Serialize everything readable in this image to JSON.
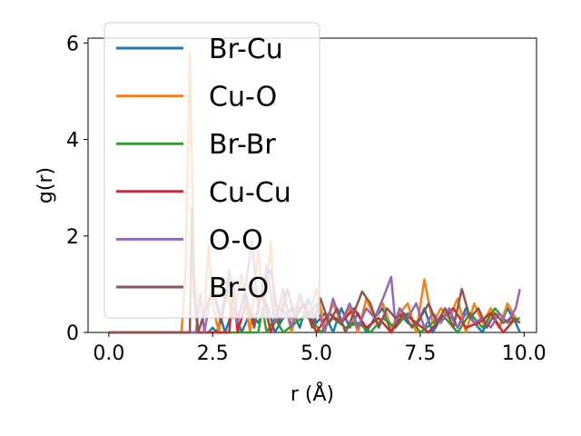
{
  "chart_data": {
    "type": "line",
    "title": "",
    "xlabel": "r (Å)",
    "ylabel": "g(r)",
    "xlim": [
      -0.5,
      10.3
    ],
    "ylim": [
      0,
      6.1
    ],
    "xticks": [
      0.0,
      2.5,
      5.0,
      7.5,
      10.0
    ],
    "xtick_labels": [
      "0.0",
      "2.5",
      "5.0",
      "7.5",
      "10.0"
    ],
    "yticks": [
      0,
      2,
      4,
      6
    ],
    "ytick_labels": [
      "0",
      "2",
      "4",
      "6"
    ],
    "grid": false,
    "legend_position": "upper-left",
    "series": [
      {
        "name": "Br-Cu",
        "color": "#1f77b4",
        "x": [
          0,
          2.4,
          2.5,
          2.6,
          2.7,
          2.8,
          3.0,
          3.2,
          3.4,
          3.6,
          3.8,
          4.0,
          4.2,
          4.4,
          4.6,
          4.8,
          5.0,
          5.2,
          5.4,
          5.6,
          5.8,
          6.0,
          6.2,
          6.4,
          6.6,
          6.8,
          7.0,
          7.2,
          7.4,
          7.6,
          7.8,
          8.0,
          8.2,
          8.4,
          8.6,
          8.8,
          9.0,
          9.2,
          9.4,
          9.6,
          9.8,
          9.9
        ],
        "y": [
          0,
          0,
          0.1,
          0,
          0.3,
          0,
          0.5,
          0,
          0.4,
          0.2,
          0.6,
          0,
          0.3,
          0.5,
          0.1,
          0.7,
          0.2,
          0.4,
          0,
          0.5,
          0.1,
          0.4,
          0,
          0.3,
          0.5,
          0,
          0.4,
          0.2,
          0.1,
          0.5,
          0,
          0.3,
          0.4,
          0.1,
          0.5,
          0.2,
          0,
          0.4,
          0.1,
          0.5,
          0.2,
          0
        ]
      },
      {
        "name": "Cu-O",
        "color": "#ff7f0e",
        "x": [
          0,
          1.75,
          1.85,
          1.95,
          2.05,
          2.15,
          2.3,
          2.4,
          2.5,
          2.65,
          2.8,
          3.0,
          3.2,
          3.4,
          3.6,
          3.75,
          3.9,
          4.0,
          4.2,
          4.4,
          4.6,
          4.8,
          5.0,
          5.2,
          5.4,
          5.6,
          5.8,
          6.0,
          6.2,
          6.4,
          6.6,
          6.8,
          7.0,
          7.2,
          7.4,
          7.6,
          7.8,
          8.0,
          8.2,
          8.4,
          8.6,
          8.8,
          9.0,
          9.2,
          9.4,
          9.6,
          9.8,
          9.9
        ],
        "y": [
          0,
          0,
          1.2,
          5.8,
          1.4,
          0,
          0.4,
          1.8,
          0.6,
          0,
          0.9,
          0.3,
          1.2,
          0,
          1.7,
          0.5,
          1.9,
          0.2,
          0.8,
          0,
          0.7,
          0.3,
          0.9,
          0.1,
          0.6,
          0.2,
          0.5,
          0,
          0.7,
          0.3,
          0.6,
          0.1,
          0.4,
          0.6,
          0,
          1.1,
          0.2,
          0.5,
          0.3,
          0.7,
          0,
          0.6,
          0.2,
          0.5,
          0.1,
          0.6,
          0.3,
          0.2
        ]
      },
      {
        "name": "Br-Br",
        "color": "#2ca02c",
        "x": [
          0,
          3.6,
          3.7,
          3.8,
          4.0,
          4.2,
          4.5,
          4.8,
          5.1,
          5.4,
          5.7,
          6.0,
          6.3,
          6.6,
          6.9,
          7.2,
          7.5,
          7.8,
          8.1,
          8.4,
          8.7,
          9.0,
          9.3,
          9.6,
          9.9
        ],
        "y": [
          0,
          0,
          0.5,
          0,
          0.3,
          0,
          0.2,
          0.4,
          0,
          0.3,
          0.1,
          0.2,
          0,
          0.3,
          0.1,
          0.4,
          0,
          0.2,
          0.3,
          0,
          0.4,
          0.1,
          0.5,
          0.2,
          0.3
        ]
      },
      {
        "name": "Cu-Cu",
        "color": "#d62728",
        "x": [
          0,
          2.9,
          3.0,
          3.1,
          3.3,
          3.5,
          3.7,
          3.9,
          4.1,
          4.4,
          4.7,
          5.0,
          5.3,
          5.6,
          5.9,
          6.2,
          6.5,
          6.8,
          7.1,
          7.4,
          7.7,
          8.0,
          8.3,
          8.6,
          8.9,
          9.2,
          9.5,
          9.8
        ],
        "y": [
          0,
          0,
          1.0,
          0,
          0.6,
          0.2,
          0.8,
          0,
          0.5,
          0.3,
          0.6,
          0,
          0.4,
          0.2,
          0.5,
          0.1,
          0.3,
          0,
          0.4,
          0.2,
          0,
          0.3,
          0.5,
          0.1,
          0.2,
          0.4,
          0,
          0.3
        ]
      },
      {
        "name": "O-O",
        "color": "#9467bd",
        "x": [
          0,
          2.1,
          2.2,
          2.3,
          2.5,
          2.7,
          2.9,
          3.1,
          3.3,
          3.45,
          3.6,
          3.8,
          4.0,
          4.2,
          4.4,
          4.6,
          4.8,
          5.0,
          5.2,
          5.4,
          5.6,
          5.8,
          6.0,
          6.2,
          6.4,
          6.6,
          6.8,
          6.9,
          7.0,
          7.2,
          7.4,
          7.6,
          7.8,
          8.0,
          8.2,
          8.4,
          8.6,
          8.8,
          9.0,
          9.2,
          9.4,
          9.6,
          9.8,
          9.9
        ],
        "y": [
          0,
          0,
          0.8,
          0,
          1.0,
          0.3,
          1.3,
          0.2,
          1.0,
          1.9,
          0.4,
          1.4,
          0.2,
          0.9,
          0.1,
          0.8,
          0.3,
          0.6,
          0,
          0.7,
          0.2,
          0.6,
          0.1,
          0.5,
          0.3,
          0.7,
          1.15,
          0.2,
          0.5,
          0.3,
          0.6,
          0.1,
          0.4,
          0.2,
          0.5,
          0.1,
          0.4,
          0.2,
          0.3,
          0.1,
          0.4,
          0.2,
          0.5,
          0.9
        ]
      },
      {
        "name": "Br-O",
        "color": "#8c564b",
        "x": [
          0,
          1.95,
          2.0,
          2.05,
          2.15,
          2.3,
          2.5,
          2.7,
          2.9,
          3.1,
          3.3,
          3.5,
          3.7,
          3.9,
          4.1,
          4.3,
          4.5,
          4.7,
          4.9,
          5.1,
          5.3,
          5.5,
          5.7,
          5.9,
          6.1,
          6.3,
          6.5,
          6.7,
          6.9,
          7.1,
          7.3,
          7.5,
          7.7,
          7.9,
          8.1,
          8.3,
          8.5,
          8.7,
          8.9,
          9.1,
          9.3,
          9.5,
          9.7,
          9.9
        ],
        "y": [
          0,
          0,
          2.6,
          0.8,
          0,
          0.4,
          0.9,
          0.2,
          1.1,
          0.3,
          0.8,
          0.1,
          1.0,
          1.3,
          0.2,
          0.9,
          0.3,
          0.6,
          0.1,
          0.7,
          0.2,
          0.5,
          0,
          0.4,
          0.85,
          0.6,
          0.1,
          0.5,
          0.3,
          0.4,
          0.1,
          0.3,
          0.6,
          0.2,
          0.5,
          0.1,
          0.9,
          0.3,
          0.5,
          0.1,
          0.4,
          0.2,
          0.3,
          0.2
        ]
      }
    ]
  }
}
